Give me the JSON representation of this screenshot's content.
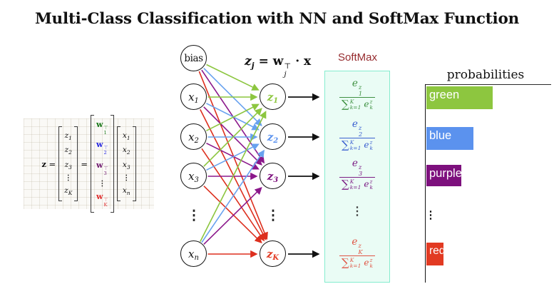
{
  "title": "Multi-Class Classification with NN and SoftMax Function",
  "colors": {
    "green": "#8dc63f",
    "blue": "#5b92ee",
    "purple": "#7d107d",
    "red": "#e23a22",
    "edge_green": "#8cc63f",
    "edge_blue": "#68a2ef",
    "edge_purple": "#8b188b",
    "edge_red": "#dd2f1e",
    "formula_green": "#3f9142",
    "formula_blue": "#3a5fd0",
    "formula_purple": "#7c1d85",
    "formula_red": "#e05545",
    "w_green": "#1b7a1b",
    "w_blue": "#2a2ae0",
    "w_purple": "#711b71",
    "w_red": "#e03030",
    "softmax_label": "#962b2e",
    "box_border": "#85ecce",
    "box_bg": "#eafcf5"
  },
  "matrix": {
    "lhs": "z",
    "equals": "=",
    "dots": "⋮",
    "z_vec": [
      {
        "b": "z",
        "s": "1"
      },
      {
        "b": "z",
        "s": "2"
      },
      {
        "b": "z",
        "s": "3"
      },
      {
        "b": "z",
        "s": "K"
      }
    ],
    "w_vec": [
      {
        "b": "w",
        "s": "1",
        "p": "⊤"
      },
      {
        "b": "w",
        "s": "2",
        "p": "⊤"
      },
      {
        "b": "w",
        "s": "3",
        "p": "⊤"
      },
      {
        "b": "w",
        "s": "K",
        "p": "⊤"
      }
    ],
    "x_vec": [
      {
        "b": "x",
        "s": "1"
      },
      {
        "b": "x",
        "s": "2"
      },
      {
        "b": "x",
        "s": "3"
      },
      {
        "b": "x",
        "s": "n"
      }
    ]
  },
  "equation": {
    "lb": "z",
    "ls": "j",
    "eq": "=",
    "rb": "w",
    "rs": "j",
    "rp": "⊤",
    "dot": "·",
    "rx": "x"
  },
  "network": {
    "bias": "bias",
    "dots": "⋮",
    "inputs": [
      {
        "b": "x",
        "s": "1"
      },
      {
        "b": "x",
        "s": "2"
      },
      {
        "b": "x",
        "s": "3"
      },
      {
        "b": "x",
        "s": "n"
      }
    ],
    "outputs": [
      {
        "b": "z",
        "s": "1"
      },
      {
        "b": "z",
        "s": "2"
      },
      {
        "b": "z",
        "s": "3"
      },
      {
        "b": "z",
        "s": "K"
      }
    ]
  },
  "softmax": {
    "label": "SoftMax",
    "dots": "⋮",
    "num_e": "e",
    "num_sup": "z",
    "rows": [
      {
        "idx": "1"
      },
      {
        "idx": "2"
      },
      {
        "idx": "3"
      },
      {
        "idx": "K"
      }
    ],
    "den": {
      "sigma": "∑",
      "sup": "K",
      "sub": "k=1",
      "e": "e",
      "e_sup": "z",
      "e_sub": "k"
    }
  },
  "chart": {
    "title": "probabilities",
    "dots": "⋮",
    "bars": [
      {
        "label": "green"
      },
      {
        "label": "blue"
      },
      {
        "label": "purple"
      },
      {
        "label": "red"
      }
    ]
  },
  "chart_data": {
    "type": "bar",
    "orientation": "horizontal",
    "title": "probabilities",
    "categories": [
      "green",
      "blue",
      "purple",
      "red"
    ],
    "values": [
      0.53,
      0.375,
      0.28,
      0.136
    ],
    "value_unit": "fraction of axis width (axis unlabeled)",
    "bar_colors": [
      "#8dc63f",
      "#5b92ee",
      "#7d107d",
      "#e23a22"
    ],
    "note": "vertical ellipsis between purple and red marks omitted classes"
  }
}
